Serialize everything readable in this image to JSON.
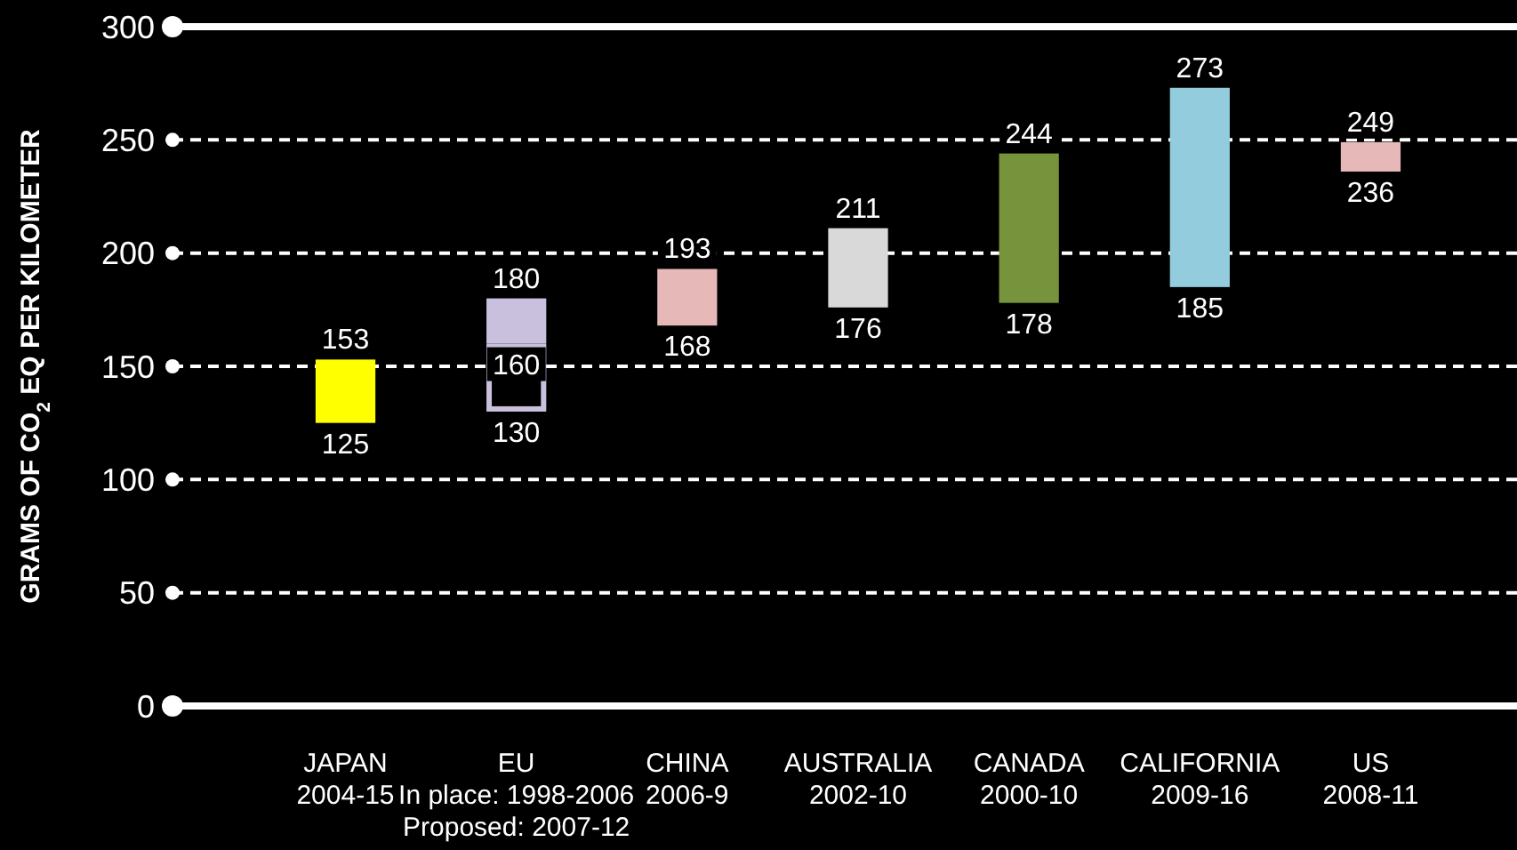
{
  "chart_data": {
    "type": "bar",
    "ylabel": "GRAMS OF CO$_{2}$ EQ PER KILOMETER",
    "categories": [
      "JAPAN\n2004-15",
      "EU\nIn place: 1998-2006\nProposed: 2007-12",
      "CHINA\n2006-9",
      "AUSTRALIA\n2002-10",
      "CANADA\n2000-10",
      "CALIFORNIA\n2009-16",
      "US\n2008-11"
    ],
    "series": [
      {
        "colors": [
          "#ffff00",
          "#c9c0dd",
          "#e6b8b7",
          "#d9d9d9",
          "#77933c",
          "#93cddd",
          "#e6b8b7"
        ],
        "base": [
          125,
          160,
          168,
          176,
          178,
          185,
          236
        ],
        "values": [
          28,
          20,
          25,
          35,
          66,
          88,
          13
        ]
      },
      {
        "line_style": "solid",
        "color": "#c9c0dd",
        "base": [
          null,
          130,
          null,
          null,
          null,
          null,
          null
        ],
        "values": [
          null,
          30,
          null,
          null,
          null,
          null,
          null
        ]
      }
    ],
    "annotations": [
      {
        "text": "153",
        "x": "JAPAN\n2004-15",
        "y": 153
      },
      {
        "text": "125",
        "x": "JAPAN\n2004-15",
        "y": 125
      },
      {
        "text": "180",
        "x": "EU\nIn place: 1998-2006\nProposed: 2007-12",
        "y": 180
      },
      {
        "text": "160",
        "x": "EU\nIn place: 1998-2006\nProposed: 2007-12",
        "y": 160
      },
      {
        "text": "130",
        "x": "EU\nIn place: 1998-2006\nProposed: 2007-12",
        "y": 130
      },
      {
        "text": "193",
        "x": "CHINA\n2006-9",
        "y": 193
      },
      {
        "text": "168",
        "x": "CHINA\n2006-9",
        "y": 168
      },
      {
        "text": "211",
        "x": "AUSTRALIA\n2002-10",
        "y": 211
      },
      {
        "text": "176",
        "x": "AUSTRALIA\n2002-10",
        "y": 176
      },
      {
        "text": "244",
        "x": "CANADA\n2000-10",
        "y": 244
      },
      {
        "text": "178",
        "x": "CANADA\n2000-10",
        "y": 178
      },
      {
        "text": "273",
        "x": "CALIFORNIA\n2009-16",
        "y": 273
      },
      {
        "text": "185",
        "x": "CALIFORNIA\n2009-16",
        "y": 185
      },
      {
        "text": "249",
        "x": "US\n2008-11",
        "y": 249
      },
      {
        "text": "236",
        "x": "US\n2008-11",
        "y": 236
      }
    ],
    "ylim": [
      0,
      300
    ],
    "yticks": [
      0,
      50,
      100,
      150,
      200,
      250,
      300
    ],
    "grid": true
  }
}
